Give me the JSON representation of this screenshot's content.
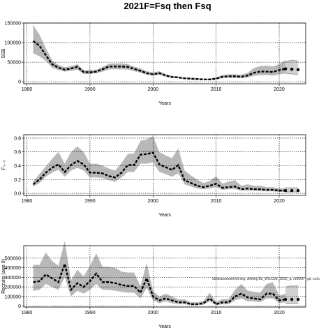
{
  "title": "2021F=Fsq then Fsq",
  "footnote": "stockassessment.org, whiting.6a_WGCSE_2022_a, r16060 , git: ec2c",
  "chart_data": [
    {
      "type": "area",
      "name": "ssb",
      "xlabel": "Years",
      "ylabel": "SSB",
      "xlim": [
        1979.5,
        2024.2
      ],
      "ylim": [
        -5000,
        150000
      ],
      "xticks": [
        1980,
        1990,
        2000,
        2010,
        2020
      ],
      "yticks": [
        0,
        50000,
        100000,
        150000
      ],
      "ytick_labels": [
        "0",
        "50000",
        "100000",
        "150000"
      ],
      "grid": true,
      "x": [
        1981,
        1982,
        1983,
        1984,
        1985,
        1986,
        1987,
        1988,
        1989,
        1990,
        1991,
        1992,
        1993,
        1994,
        1995,
        1996,
        1997,
        1998,
        1999,
        2000,
        2001,
        2002,
        2003,
        2004,
        2005,
        2006,
        2007,
        2008,
        2009,
        2010,
        2011,
        2012,
        2013,
        2014,
        2015,
        2016,
        2017,
        2018,
        2019,
        2020,
        2021
      ],
      "estimate": [
        104000,
        92000,
        68000,
        45000,
        36000,
        31000,
        34000,
        38000,
        25000,
        24000,
        26000,
        32000,
        39000,
        39000,
        39000,
        38000,
        33000,
        28000,
        22000,
        19000,
        22000,
        16000,
        12000,
        11000,
        9000,
        8000,
        7000,
        6000,
        6000,
        8000,
        13000,
        14000,
        14000,
        13000,
        16000,
        23000,
        26000,
        26000,
        25000,
        30000,
        33000
      ],
      "lower": [
        73000,
        65000,
        53000,
        36000,
        30000,
        26000,
        28000,
        31000,
        20000,
        20000,
        22000,
        26000,
        32000,
        32000,
        32000,
        31000,
        27000,
        23000,
        18000,
        16000,
        18000,
        13000,
        10000,
        9000,
        7000,
        6000,
        5000,
        5000,
        4000,
        6000,
        9000,
        10000,
        10000,
        9000,
        11000,
        15000,
        17000,
        17000,
        16000,
        19000,
        21000
      ],
      "upper": [
        145000,
        120000,
        86000,
        55000,
        43000,
        37000,
        40000,
        45000,
        30000,
        30000,
        31000,
        38000,
        46000,
        47000,
        47000,
        45000,
        39000,
        34000,
        27000,
        24000,
        27000,
        20000,
        15000,
        14000,
        11000,
        10000,
        9000,
        8000,
        8000,
        11000,
        17000,
        19000,
        19000,
        18000,
        23000,
        35000,
        40000,
        41000,
        39000,
        45000,
        55000
      ],
      "projection_x": [
        2021,
        2022,
        2023
      ],
      "projection_values": [
        33000,
        32000,
        31000
      ],
      "projection_lower": [
        22000,
        20000,
        19000
      ],
      "projection_upper": [
        52000,
        55000,
        53000
      ]
    },
    {
      "type": "area",
      "name": "fbar",
      "xlabel": "Years",
      "ylabel": "F₃₋₅",
      "xlim": [
        1979.5,
        2024.2
      ],
      "ylim": [
        -0.03,
        0.85
      ],
      "xticks": [
        1980,
        1990,
        2000,
        2010,
        2020
      ],
      "yticks": [
        0.0,
        0.2,
        0.4,
        0.6,
        0.8
      ],
      "ytick_labels": [
        "0.0",
        "0.2",
        "0.4",
        "0.6",
        "0.8"
      ],
      "grid": true,
      "x": [
        1981,
        1982,
        1983,
        1984,
        1985,
        1986,
        1987,
        1988,
        1989,
        1990,
        1991,
        1992,
        1993,
        1994,
        1995,
        1996,
        1997,
        1998,
        1999,
        2000,
        2001,
        2002,
        2003,
        2004,
        2005,
        2006,
        2007,
        2008,
        2009,
        2010,
        2011,
        2012,
        2013,
        2014,
        2015,
        2016,
        2017,
        2018,
        2019,
        2020,
        2021
      ],
      "estimate": [
        0.13,
        0.2,
        0.3,
        0.37,
        0.42,
        0.31,
        0.41,
        0.47,
        0.42,
        0.3,
        0.3,
        0.29,
        0.25,
        0.23,
        0.3,
        0.41,
        0.41,
        0.56,
        0.57,
        0.59,
        0.42,
        0.38,
        0.34,
        0.41,
        0.19,
        0.15,
        0.11,
        0.09,
        0.11,
        0.14,
        0.08,
        0.09,
        0.1,
        0.06,
        0.07,
        0.06,
        0.06,
        0.05,
        0.05,
        0.04,
        0.04
      ],
      "lower": [
        0.1,
        0.15,
        0.24,
        0.3,
        0.34,
        0.24,
        0.33,
        0.37,
        0.33,
        0.23,
        0.23,
        0.22,
        0.19,
        0.17,
        0.23,
        0.31,
        0.31,
        0.43,
        0.43,
        0.45,
        0.31,
        0.28,
        0.24,
        0.29,
        0.13,
        0.1,
        0.07,
        0.06,
        0.07,
        0.09,
        0.05,
        0.06,
        0.06,
        0.04,
        0.04,
        0.04,
        0.03,
        0.03,
        0.03,
        0.02,
        0.02
      ],
      "upper": [
        0.17,
        0.28,
        0.39,
        0.5,
        0.6,
        0.43,
        0.6,
        0.68,
        0.6,
        0.43,
        0.43,
        0.4,
        0.36,
        0.33,
        0.44,
        0.57,
        0.58,
        0.76,
        0.78,
        0.83,
        0.6,
        0.55,
        0.51,
        0.65,
        0.33,
        0.26,
        0.2,
        0.15,
        0.18,
        0.25,
        0.14,
        0.17,
        0.19,
        0.11,
        0.13,
        0.11,
        0.11,
        0.09,
        0.09,
        0.07,
        0.08
      ],
      "projection_x": [
        2021,
        2022,
        2023
      ],
      "projection_values": [
        0.04,
        0.04,
        0.04
      ],
      "projection_lower": [
        0.02,
        0.02,
        0.02
      ],
      "projection_upper": [
        0.08,
        0.08,
        0.08
      ]
    },
    {
      "type": "area",
      "name": "recruitment",
      "xlabel": "Years",
      "ylabel": "Recruits (age 0)",
      "xlim": [
        1979.5,
        2024.2
      ],
      "ylim": [
        -10000,
        630000
      ],
      "xticks": [
        1980,
        1990,
        2000,
        2010,
        2020
      ],
      "yticks": [
        0,
        100000,
        200000,
        300000,
        400000,
        500000
      ],
      "ytick_labels": [
        "0",
        "100000",
        "200000",
        "300000",
        "400000",
        "500000"
      ],
      "grid": true,
      "x": [
        1981,
        1982,
        1983,
        1984,
        1985,
        1986,
        1987,
        1988,
        1989,
        1990,
        1991,
        1992,
        1993,
        1994,
        1995,
        1996,
        1997,
        1998,
        1999,
        2000,
        2001,
        2002,
        2003,
        2004,
        2005,
        2006,
        2007,
        2008,
        2009,
        2010,
        2011,
        2012,
        2013,
        2014,
        2015,
        2016,
        2017,
        2018,
        2019,
        2020,
        2021
      ],
      "estimate": [
        250000,
        260000,
        330000,
        290000,
        250000,
        440000,
        170000,
        240000,
        200000,
        260000,
        340000,
        250000,
        250000,
        240000,
        220000,
        210000,
        210000,
        140000,
        290000,
        100000,
        60000,
        80000,
        60000,
        40000,
        40000,
        20000,
        20000,
        30000,
        80000,
        20000,
        40000,
        40000,
        100000,
        130000,
        90000,
        80000,
        70000,
        130000,
        130000,
        60000,
        70000
      ],
      "lower": [
        160000,
        170000,
        230000,
        200000,
        170000,
        300000,
        100000,
        160000,
        130000,
        170000,
        230000,
        170000,
        170000,
        160000,
        150000,
        140000,
        140000,
        80000,
        190000,
        60000,
        30000,
        50000,
        30000,
        20000,
        20000,
        10000,
        10000,
        15000,
        50000,
        10000,
        20000,
        20000,
        60000,
        80000,
        50000,
        50000,
        40000,
        80000,
        80000,
        30000,
        40000
      ],
      "upper": [
        430000,
        430000,
        560000,
        470000,
        420000,
        680000,
        270000,
        380000,
        310000,
        420000,
        550000,
        410000,
        410000,
        400000,
        360000,
        350000,
        350000,
        210000,
        450000,
        160000,
        100000,
        130000,
        100000,
        70000,
        70000,
        40000,
        40000,
        55000,
        140000,
        45000,
        75000,
        75000,
        170000,
        230000,
        160000,
        150000,
        140000,
        230000,
        250000,
        110000,
        130000
      ],
      "projection_x": [
        2021,
        2022,
        2023
      ],
      "projection_values": [
        70000,
        70000,
        70000
      ],
      "projection_lower": [
        30000,
        30000,
        30000
      ],
      "projection_upper": [
        200000,
        210000,
        210000
      ]
    }
  ]
}
